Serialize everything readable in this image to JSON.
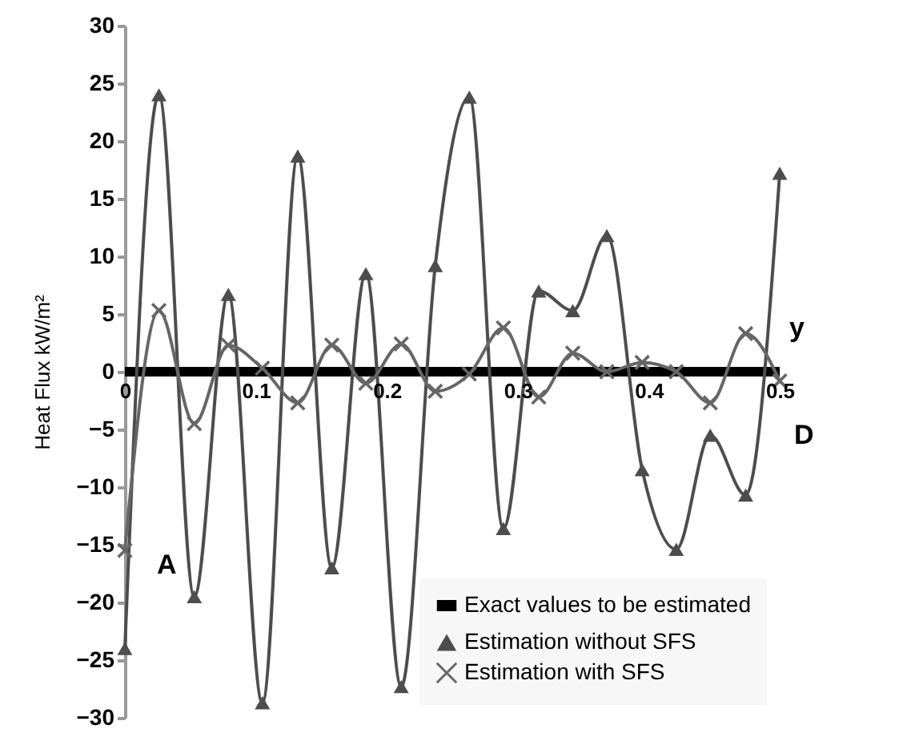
{
  "chart_data": {
    "type": "line",
    "ylabel": "Heat Flux kW/m²",
    "x": [
      0,
      0.026,
      0.053,
      0.079,
      0.105,
      0.132,
      0.158,
      0.184,
      0.211,
      0.237,
      0.263,
      0.289,
      0.316,
      0.342,
      0.368,
      0.395,
      0.421,
      0.447,
      0.474,
      0.5
    ],
    "series": [
      {
        "name": "Exact values to be estimated",
        "color": "#000000",
        "marker": "none",
        "x": [
          0,
          0.5
        ],
        "values": [
          0,
          0
        ]
      },
      {
        "name": "Estimation without SFS",
        "color": "#4d4d4d",
        "marker": "triangle",
        "values": [
          -24,
          24,
          -19.5,
          6.7,
          -28.7,
          18.7,
          -17,
          8.5,
          -27.3,
          9.2,
          23.8,
          -13.6,
          7,
          5.3,
          11.8,
          -8.5,
          -15.4,
          -5.5,
          -10.7,
          17.2
        ]
      },
      {
        "name": "Estimation with SFS",
        "color": "#666666",
        "marker": "cross",
        "values": [
          -15.5,
          5.3,
          -4.5,
          2.3,
          0.3,
          -2.7,
          2.3,
          -1,
          2.4,
          -1.7,
          -0.2,
          3.8,
          -2.2,
          1.6,
          0,
          0.8,
          0,
          -2.7,
          3.3,
          -0.8
        ]
      }
    ],
    "xlim": [
      0,
      0.5
    ],
    "xticks": [
      0,
      0.1,
      0.2,
      0.3,
      0.4,
      0.5
    ],
    "ylim": [
      -30,
      30
    ],
    "yticks": [
      -30,
      -25,
      -20,
      -15,
      -10,
      -5,
      0,
      5,
      10,
      15,
      20,
      25,
      30
    ],
    "annotations": [
      "A",
      "D",
      "y"
    ],
    "grid": false,
    "legend": "bottom right",
    "line_style": "solid"
  }
}
